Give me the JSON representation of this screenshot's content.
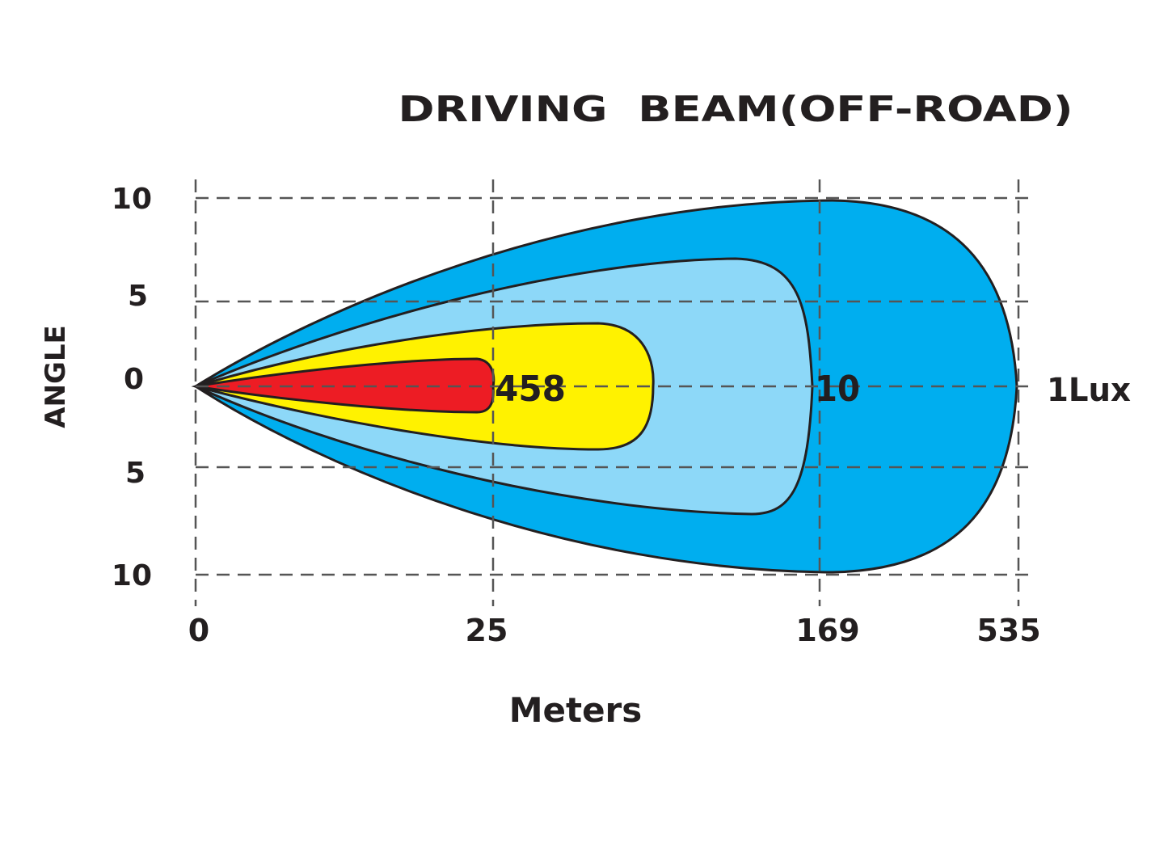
{
  "title": "DRIVING  BEAM(OFF-ROAD)",
  "y_axis": {
    "label": "ANGLE",
    "ticks": [
      "10",
      "5",
      "0",
      "5",
      "10"
    ]
  },
  "x_axis": {
    "label": "Meters",
    "ticks": [
      "0",
      "25",
      "169",
      "535"
    ]
  },
  "contours": [
    {
      "label": "458"
    },
    {
      "label": "10"
    },
    {
      "label": "1Lux"
    }
  ]
}
